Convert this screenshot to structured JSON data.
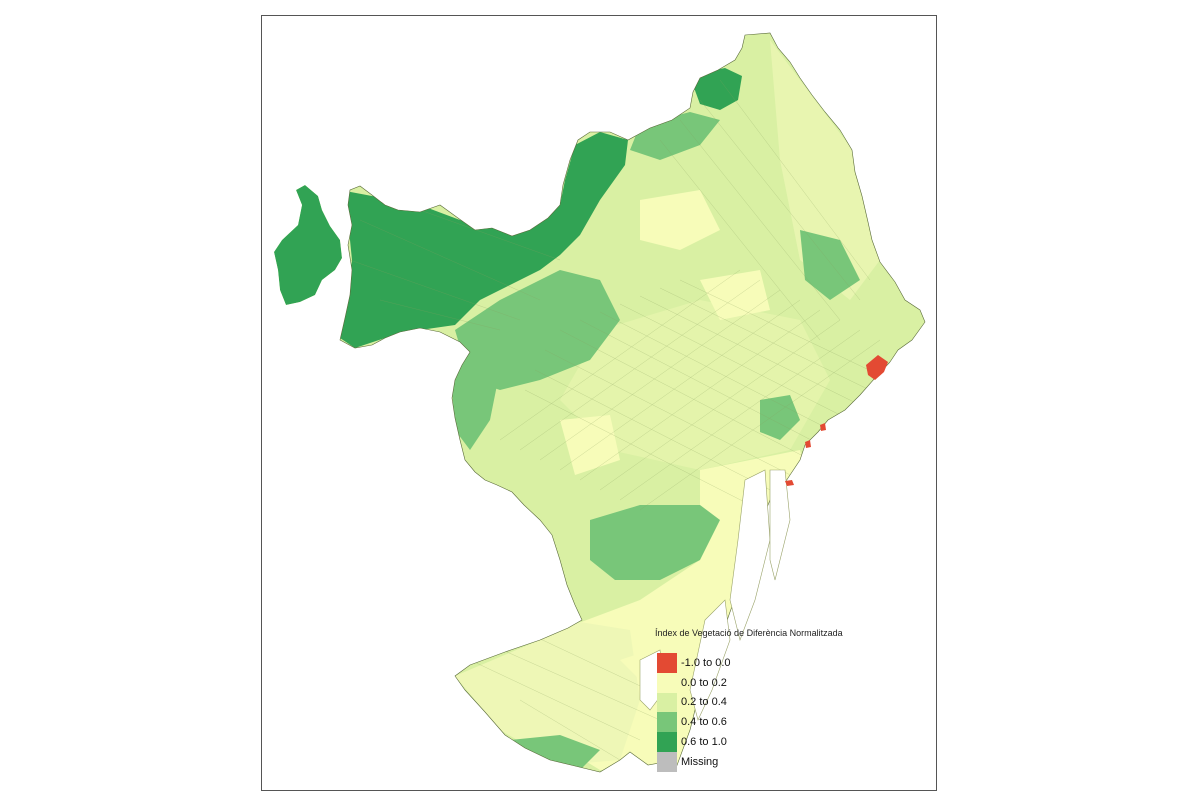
{
  "map": {
    "legend": {
      "title": "Índex de Vegetació de Diferència Normalitzada",
      "classes": [
        {
          "label": "-1.0 to 0.0",
          "color": "#e34a33"
        },
        {
          "label": "0.0 to 0.2",
          "color": "#f7fcb9"
        },
        {
          "label": "0.2 to 0.4",
          "color": "#d9f0a3"
        },
        {
          "label": "0.4 to 0.6",
          "color": "#78c679"
        },
        {
          "label": "0.6 to 1.0",
          "color": "#31a354"
        },
        {
          "label": "Missing",
          "color": "#bdbdbd"
        }
      ]
    },
    "colors": {
      "frame": "#555555",
      "background": "#ffffff",
      "boundary": "#5a6b3a"
    }
  }
}
